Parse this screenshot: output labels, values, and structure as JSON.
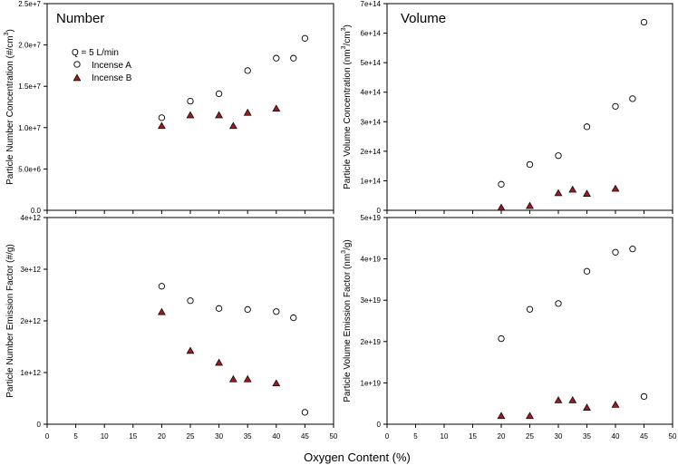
{
  "figure": {
    "x_axis_title": "Oxygen Content (%)",
    "legend": {
      "header": "Q = 5 L/min",
      "series_a_name": "Incense A",
      "series_b_name": "Incense B",
      "series_a_marker": "open circle",
      "series_b_marker": "filled triangle",
      "series_b_color": "#9b1c1c"
    }
  },
  "chart_data": [
    {
      "id": "number-concentration",
      "type": "scatter",
      "title": "Number",
      "ylabel": "Particle Number Concentration (#/cm",
      "ylabel_sup": "3",
      "ylabel_tail": ")",
      "xlim": [
        0,
        50
      ],
      "ylim": [
        0,
        25000000
      ],
      "xticks": [
        0,
        5,
        10,
        15,
        20,
        25,
        30,
        35,
        40,
        45,
        50
      ],
      "yticks": [
        0,
        5000000,
        10000000,
        15000000,
        20000000,
        25000000
      ],
      "ytick_labels": [
        "0.0",
        "5.0e+6",
        "1.0e+7",
        "1.5e+7",
        "2.0e+7",
        "2.5e+7"
      ],
      "show_x_tick_labels": false,
      "series": [
        {
          "name": "Incense A",
          "x": [
            20,
            25,
            30,
            35,
            40,
            43,
            45
          ],
          "y": [
            11200000,
            13200000,
            14100000,
            16900000,
            18400000,
            18400000,
            20800000
          ]
        },
        {
          "name": "Incense B",
          "x": [
            20,
            25,
            30,
            32.5,
            35,
            40
          ],
          "y": [
            10200000,
            11500000,
            11500000,
            10200000,
            11800000,
            12300000
          ]
        }
      ]
    },
    {
      "id": "volume-concentration",
      "type": "scatter",
      "title": "Volume",
      "ylabel": "Particle Volume Concentration (nm",
      "ylabel_sup": "3",
      "ylabel_tail": "/cm",
      "ylabel_sup2": "3",
      "ylabel_tail2": ")",
      "xlim": [
        0,
        50
      ],
      "ylim": [
        0,
        700000000000000
      ],
      "xticks": [
        0,
        5,
        10,
        15,
        20,
        25,
        30,
        35,
        40,
        45,
        50
      ],
      "yticks": [
        0,
        100000000000000,
        200000000000000,
        300000000000000,
        400000000000000,
        500000000000000,
        600000000000000,
        700000000000000
      ],
      "ytick_labels": [
        "0",
        "1e+14",
        "2e+14",
        "3e+14",
        "4e+14",
        "5e+14",
        "6e+14",
        "7e+14"
      ],
      "show_x_tick_labels": false,
      "series": [
        {
          "name": "Incense A",
          "x": [
            20,
            25,
            30,
            35,
            40,
            43,
            45
          ],
          "y": [
            88000000000000,
            155000000000000,
            185000000000000,
            283000000000000,
            352000000000000,
            378000000000000,
            637000000000000
          ]
        },
        {
          "name": "Incense B",
          "x": [
            20,
            25,
            30,
            32.5,
            35,
            40
          ],
          "y": [
            9000000000000,
            15000000000000,
            58000000000000,
            70000000000000,
            56000000000000,
            73000000000000
          ]
        }
      ]
    },
    {
      "id": "number-emission-factor",
      "type": "scatter",
      "title": "",
      "ylabel": "Particle Number Emission Factor (#/g)",
      "xlim": [
        0,
        50
      ],
      "ylim": [
        0,
        4000000000000
      ],
      "xticks": [
        0,
        5,
        10,
        15,
        20,
        25,
        30,
        35,
        40,
        45,
        50
      ],
      "yticks": [
        0,
        1000000000000,
        2000000000000,
        3000000000000,
        4000000000000
      ],
      "ytick_labels": [
        "0",
        "1e+12",
        "2e+12",
        "3e+12",
        "4e+12"
      ],
      "show_x_tick_labels": true,
      "series": [
        {
          "name": "Incense A",
          "x": [
            20,
            25,
            30,
            35,
            40,
            43,
            45
          ],
          "y": [
            2670000000000,
            2390000000000,
            2240000000000,
            2220000000000,
            2180000000000,
            2060000000000,
            230000000000
          ]
        },
        {
          "name": "Incense B",
          "x": [
            20,
            25,
            30,
            32.5,
            35,
            40
          ],
          "y": [
            2170000000000,
            1420000000000,
            1190000000000,
            870000000000,
            870000000000,
            790000000000
          ]
        }
      ]
    },
    {
      "id": "volume-emission-factor",
      "type": "scatter",
      "title": "",
      "ylabel": "Particle Volume Emission Factor (nm",
      "ylabel_sup": "3",
      "ylabel_tail": "/g)",
      "xlim": [
        0,
        50
      ],
      "ylim": [
        0,
        50000000000000000000
      ],
      "xticks": [
        0,
        5,
        10,
        15,
        20,
        25,
        30,
        35,
        40,
        45,
        50
      ],
      "yticks": [
        0,
        10000000000000000000,
        20000000000000000000,
        30000000000000000000,
        40000000000000000000,
        50000000000000000000
      ],
      "ytick_labels": [
        "0",
        "1e+19",
        "2e+19",
        "3e+19",
        "4e+19",
        "5e+19"
      ],
      "show_x_tick_labels": true,
      "series": [
        {
          "name": "Incense A",
          "x": [
            20,
            25,
            30,
            35,
            40,
            43,
            45
          ],
          "y": [
            20700000000000000000,
            27800000000000000000,
            29200000000000000000,
            37000000000000000000,
            41600000000000000000,
            42400000000000000000,
            6700000000000000000
          ]
        },
        {
          "name": "Incense B",
          "x": [
            20,
            25,
            30,
            32.5,
            35,
            40
          ],
          "y": [
            2000000000000000000,
            2000000000000000000,
            5800000000000000000,
            5800000000000000000,
            4000000000000000000,
            4700000000000000000
          ]
        }
      ]
    }
  ]
}
